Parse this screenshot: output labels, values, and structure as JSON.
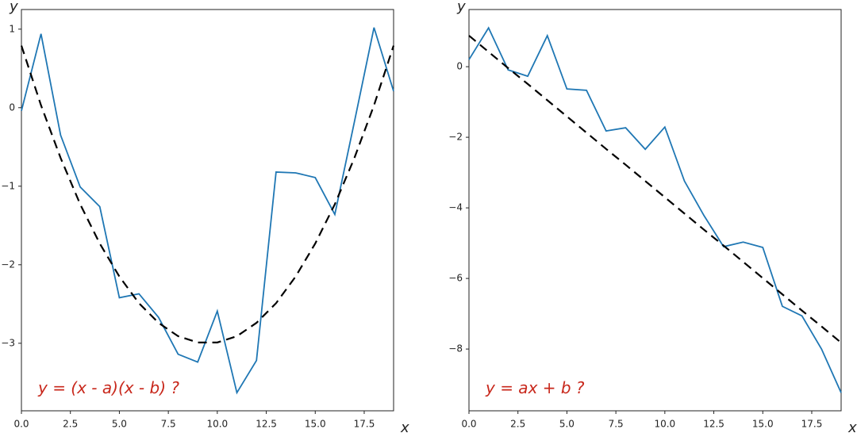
{
  "chart_data": [
    {
      "type": "line",
      "annotation": "y = (x - a)(x - b) ?",
      "xlabel": "x",
      "ylabel": "y",
      "x": [
        0,
        1,
        2,
        3,
        4,
        5,
        6,
        7,
        8,
        9,
        10,
        11,
        12,
        13,
        14,
        15,
        16,
        17,
        18,
        19
      ],
      "series": [
        {
          "color": "#1f77b4",
          "style": "solid",
          "values": [
            -0.04,
            0.94,
            -0.35,
            -1.01,
            -1.26,
            -2.42,
            -2.37,
            -2.67,
            -3.14,
            -3.24,
            -2.59,
            -3.63,
            -3.22,
            -0.82,
            -0.83,
            -0.89,
            -1.36,
            -0.18,
            1.02,
            0.21
          ]
        },
        {
          "color": "#000000",
          "style": "dashed",
          "values": [
            0.79,
            0.03,
            -0.64,
            -1.23,
            -1.73,
            -2.15,
            -2.49,
            -2.74,
            -2.91,
            -2.99,
            -2.99,
            -2.91,
            -2.74,
            -2.49,
            -2.15,
            -1.73,
            -1.23,
            -0.64,
            0.03,
            0.79
          ]
        }
      ],
      "xlim": [
        0,
        19
      ],
      "ylim": [
        -3.86,
        1.25
      ],
      "xticks": [
        {
          "value": 0,
          "label": "0.0"
        },
        2.5,
        {
          "value": 5,
          "label": "5.0"
        },
        7.5,
        {
          "value": 10,
          "label": "10.0"
        },
        12.5,
        {
          "value": 15,
          "label": "15.0"
        },
        17.5
      ],
      "yticks": [
        {
          "value": -3,
          "label": "−3"
        },
        {
          "value": -2,
          "label": "−2"
        },
        {
          "value": -1,
          "label": "−1"
        },
        0,
        1
      ]
    },
    {
      "type": "line",
      "annotation": "y = ax + b ?",
      "xlabel": "x",
      "ylabel": "y",
      "x": [
        0,
        1,
        2,
        3,
        4,
        5,
        6,
        7,
        8,
        9,
        10,
        11,
        12,
        13,
        14,
        15,
        16,
        17,
        18,
        19
      ],
      "series": [
        {
          "color": "#1f77b4",
          "style": "solid",
          "values": [
            0.2,
            1.1,
            -0.09,
            -0.27,
            0.88,
            -0.63,
            -0.67,
            -1.82,
            -1.73,
            -2.34,
            -1.71,
            -3.24,
            -4.22,
            -5.1,
            -4.97,
            -5.12,
            -6.79,
            -7.06,
            -8.0,
            -9.24
          ]
        },
        {
          "color": "#000000",
          "style": "dashed",
          "values": [
            0.88,
            0.42,
            -0.04,
            -0.49,
            -0.95,
            -1.41,
            -1.87,
            -2.33,
            -2.78,
            -3.24,
            -3.7,
            -4.16,
            -4.62,
            -5.07,
            -5.53,
            -5.99,
            -6.45,
            -6.91,
            -7.36,
            -7.82
          ]
        }
      ],
      "xlim": [
        0,
        19
      ],
      "ylim": [
        -9.75,
        1.62
      ],
      "xticks": [
        {
          "value": 0,
          "label": "0.0"
        },
        2.5,
        {
          "value": 5,
          "label": "5.0"
        },
        7.5,
        {
          "value": 10,
          "label": "10.0"
        },
        12.5,
        {
          "value": 15,
          "label": "15.0"
        },
        17.5
      ],
      "yticks": [
        {
          "value": -8,
          "label": "−8"
        },
        {
          "value": -6,
          "label": "−6"
        },
        {
          "value": -4,
          "label": "−4"
        },
        {
          "value": -2,
          "label": "−2"
        },
        0
      ]
    }
  ]
}
